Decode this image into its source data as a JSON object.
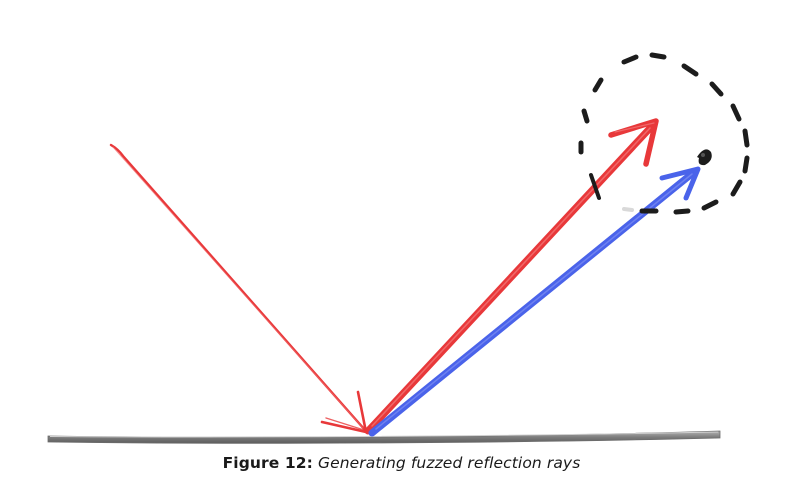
{
  "figure": {
    "caption_label": "Figure 12:",
    "caption_text": "Generating fuzzed reflection rays",
    "colors": {
      "incident_ray": "#e8383a",
      "reflected_ray": "#e8383a",
      "fuzzed_ray": "#4a63ea",
      "surface": "#8a8a8a",
      "fuzz_sphere": "#1c1c1c"
    },
    "elements": [
      "surface",
      "incident-ray",
      "reflected-ray",
      "fuzzed-reflection-ray",
      "fuzz-sphere",
      "fuzz-sphere-center"
    ]
  }
}
